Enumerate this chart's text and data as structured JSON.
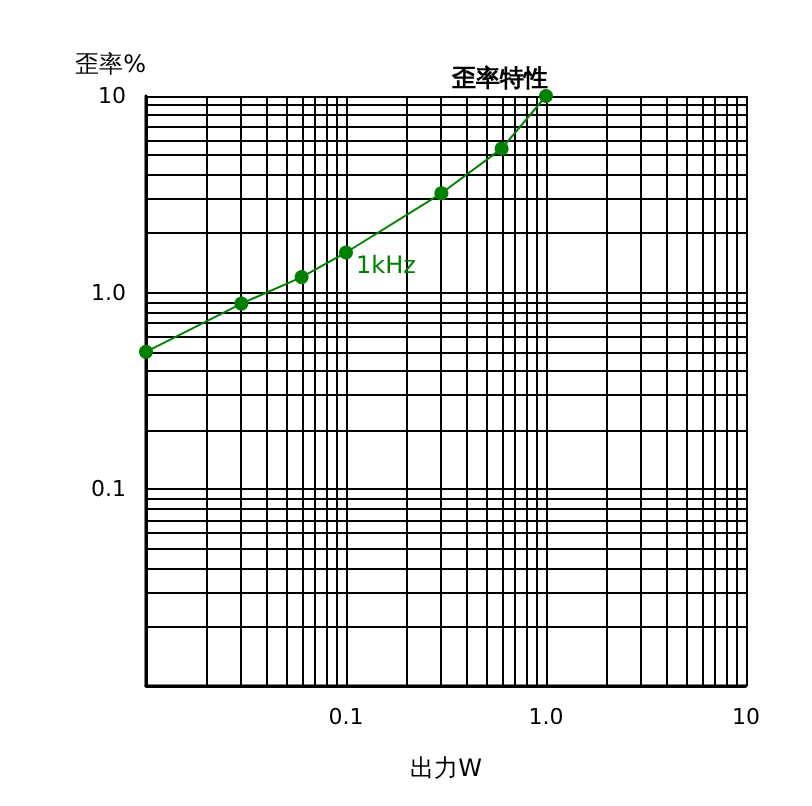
{
  "chart_data": {
    "type": "line",
    "title": "歪率特性",
    "xlabel": "出力W",
    "ylabel": "歪率%",
    "log": "xy",
    "grid": true,
    "marker": "circle",
    "line_style": "solid",
    "annotations": [
      {
        "text": "1kHz",
        "x": 0.1,
        "y": 1.6
      }
    ],
    "xlim": [
      0.01,
      10
    ],
    "ylim": [
      0.01,
      10
    ],
    "xticks": [
      {
        "value": 0.01,
        "label": null
      },
      {
        "value": 0.02,
        "label": null
      },
      {
        "value": 0.03,
        "label": null
      },
      {
        "value": 0.04,
        "label": null
      },
      {
        "value": 0.05,
        "label": null
      },
      {
        "value": 0.06,
        "label": null
      },
      {
        "value": 0.07,
        "label": null
      },
      {
        "value": 0.08,
        "label": null
      },
      {
        "value": 0.09,
        "label": null
      },
      0.1,
      {
        "value": 0.2,
        "label": null
      },
      {
        "value": 0.3,
        "label": null
      },
      {
        "value": 0.4,
        "label": null
      },
      {
        "value": 0.5,
        "label": null
      },
      {
        "value": 0.6,
        "label": null
      },
      {
        "value": 0.7,
        "label": null
      },
      {
        "value": 0.8,
        "label": null
      },
      {
        "value": 0.9,
        "label": null
      },
      {
        "value": 1,
        "label": "1.0"
      },
      {
        "value": 2,
        "label": null
      },
      {
        "value": 3,
        "label": null
      },
      {
        "value": 4,
        "label": null
      },
      {
        "value": 5,
        "label": null
      },
      {
        "value": 6,
        "label": null
      },
      {
        "value": 7,
        "label": null
      },
      {
        "value": 8,
        "label": null
      },
      {
        "value": 9,
        "label": null
      },
      10
    ],
    "yticks": [
      {
        "value": 0.01,
        "label": null
      },
      {
        "value": 0.02,
        "label": null
      },
      {
        "value": 0.03,
        "label": null
      },
      {
        "value": 0.04,
        "label": null
      },
      {
        "value": 0.05,
        "label": null
      },
      {
        "value": 0.06,
        "label": null
      },
      {
        "value": 0.07,
        "label": null
      },
      {
        "value": 0.08,
        "label": null
      },
      {
        "value": 0.09,
        "label": null
      },
      0.1,
      {
        "value": 0.2,
        "label": null
      },
      {
        "value": 0.3,
        "label": null
      },
      {
        "value": 0.4,
        "label": null
      },
      {
        "value": 0.5,
        "label": null
      },
      {
        "value": 0.6,
        "label": null
      },
      {
        "value": 0.7,
        "label": null
      },
      {
        "value": 0.8,
        "label": null
      },
      {
        "value": 0.9,
        "label": null
      },
      {
        "value": 1,
        "label": "1.0"
      },
      {
        "value": 2,
        "label": null
      },
      {
        "value": 3,
        "label": null
      },
      {
        "value": 4,
        "label": null
      },
      {
        "value": 5,
        "label": null
      },
      {
        "value": 6,
        "label": null
      },
      {
        "value": 7,
        "label": null
      },
      {
        "value": 8,
        "label": null
      },
      {
        "value": 9,
        "label": null
      },
      10
    ],
    "series": [
      {
        "color": "#008000",
        "x": [
          0.01,
          0.03,
          0.06,
          0.1,
          0.3,
          0.6,
          1
        ],
        "values": [
          0.5,
          0.88,
          1.2,
          1.6,
          3.2,
          5.4,
          10
        ]
      }
    ]
  }
}
